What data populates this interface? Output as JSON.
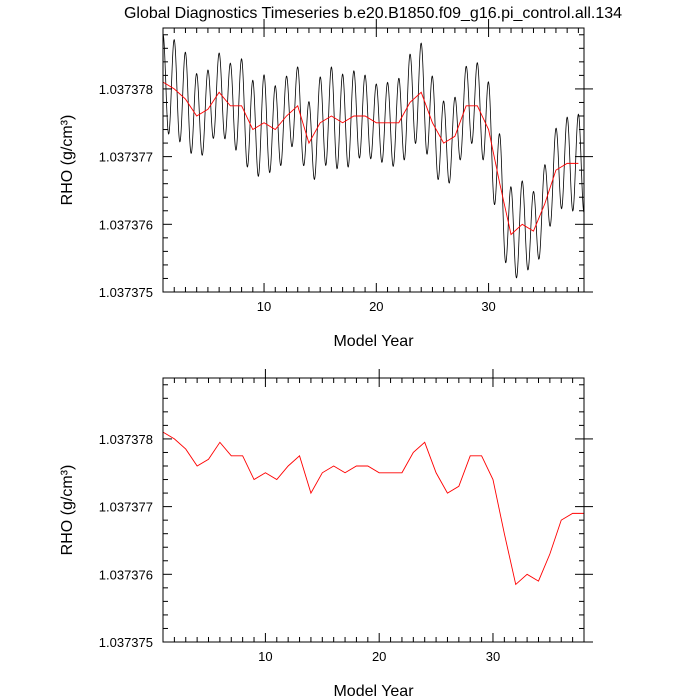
{
  "title": "Global Diagnostics Timeseries b.e20.B1850.f09_g16.pi_control.all.134",
  "chart_data": [
    {
      "type": "line",
      "xlabel": "Model Year",
      "ylabel": "RHO (g/cm³)",
      "xlim": [
        1,
        38.5
      ],
      "ylim": [
        1.037375,
        1.0373789
      ],
      "xticks": [
        10,
        20,
        30
      ],
      "yticks": [
        1.037375,
        1.037376,
        1.037377,
        1.037378
      ],
      "ytick_labels": [
        "1.037375",
        "1.037376",
        "1.037377",
        "1.037378"
      ],
      "series": [
        {
          "kind": "monthly",
          "color": "#000000",
          "amplitude": 6.5e-07,
          "x": [
            1,
            38.5
          ]
        },
        {
          "kind": "annual",
          "color": "#ff0000",
          "x": [
            1,
            2,
            3,
            4,
            5,
            6,
            7,
            8,
            9,
            10,
            11,
            12,
            13,
            14,
            15,
            16,
            17,
            18,
            19,
            20,
            21,
            22,
            23,
            24,
            25,
            26,
            27,
            28,
            29,
            30,
            31,
            32,
            33,
            34,
            35,
            36,
            37,
            38
          ],
          "values": [
            1.0373781,
            1.037378,
            1.03737785,
            1.0373776,
            1.0373777,
            1.03737795,
            1.03737775,
            1.03737775,
            1.0373774,
            1.0373775,
            1.0373774,
            1.0373776,
            1.03737775,
            1.0373772,
            1.0373775,
            1.0373776,
            1.0373775,
            1.0373776,
            1.0373776,
            1.0373775,
            1.0373775,
            1.0373775,
            1.0373778,
            1.03737795,
            1.0373775,
            1.0373772,
            1.0373773,
            1.03737775,
            1.03737775,
            1.0373774,
            1.0373766,
            1.03737585,
            1.037376,
            1.0373759,
            1.0373763,
            1.0373768,
            1.0373769,
            1.0373769
          ]
        }
      ]
    },
    {
      "type": "line",
      "xlabel": "Model Year",
      "ylabel": "RHO (g/cm³)",
      "xlim": [
        1,
        38
      ],
      "ylim": [
        1.037375,
        1.0373789
      ],
      "xticks": [
        10,
        20,
        30
      ],
      "yticks": [
        1.037375,
        1.037376,
        1.037377,
        1.037378
      ],
      "ytick_labels": [
        "1.037375",
        "1.037376",
        "1.037377",
        "1.037378"
      ],
      "series": [
        {
          "kind": "annual",
          "color": "#ff0000",
          "x": [
            1,
            2,
            3,
            4,
            5,
            6,
            7,
            8,
            9,
            10,
            11,
            12,
            13,
            14,
            15,
            16,
            17,
            18,
            19,
            20,
            21,
            22,
            23,
            24,
            25,
            26,
            27,
            28,
            29,
            30,
            31,
            32,
            33,
            34,
            35,
            36,
            37,
            38
          ],
          "values": [
            1.0373781,
            1.037378,
            1.03737785,
            1.0373776,
            1.0373777,
            1.03737795,
            1.03737775,
            1.03737775,
            1.0373774,
            1.0373775,
            1.0373774,
            1.0373776,
            1.03737775,
            1.0373772,
            1.0373775,
            1.0373776,
            1.0373775,
            1.0373776,
            1.0373776,
            1.0373775,
            1.0373775,
            1.0373775,
            1.0373778,
            1.03737795,
            1.0373775,
            1.0373772,
            1.0373773,
            1.03737775,
            1.03737775,
            1.0373774,
            1.0373766,
            1.03737585,
            1.037376,
            1.0373759,
            1.0373763,
            1.0373768,
            1.0373769,
            1.0373769
          ]
        }
      ]
    }
  ]
}
